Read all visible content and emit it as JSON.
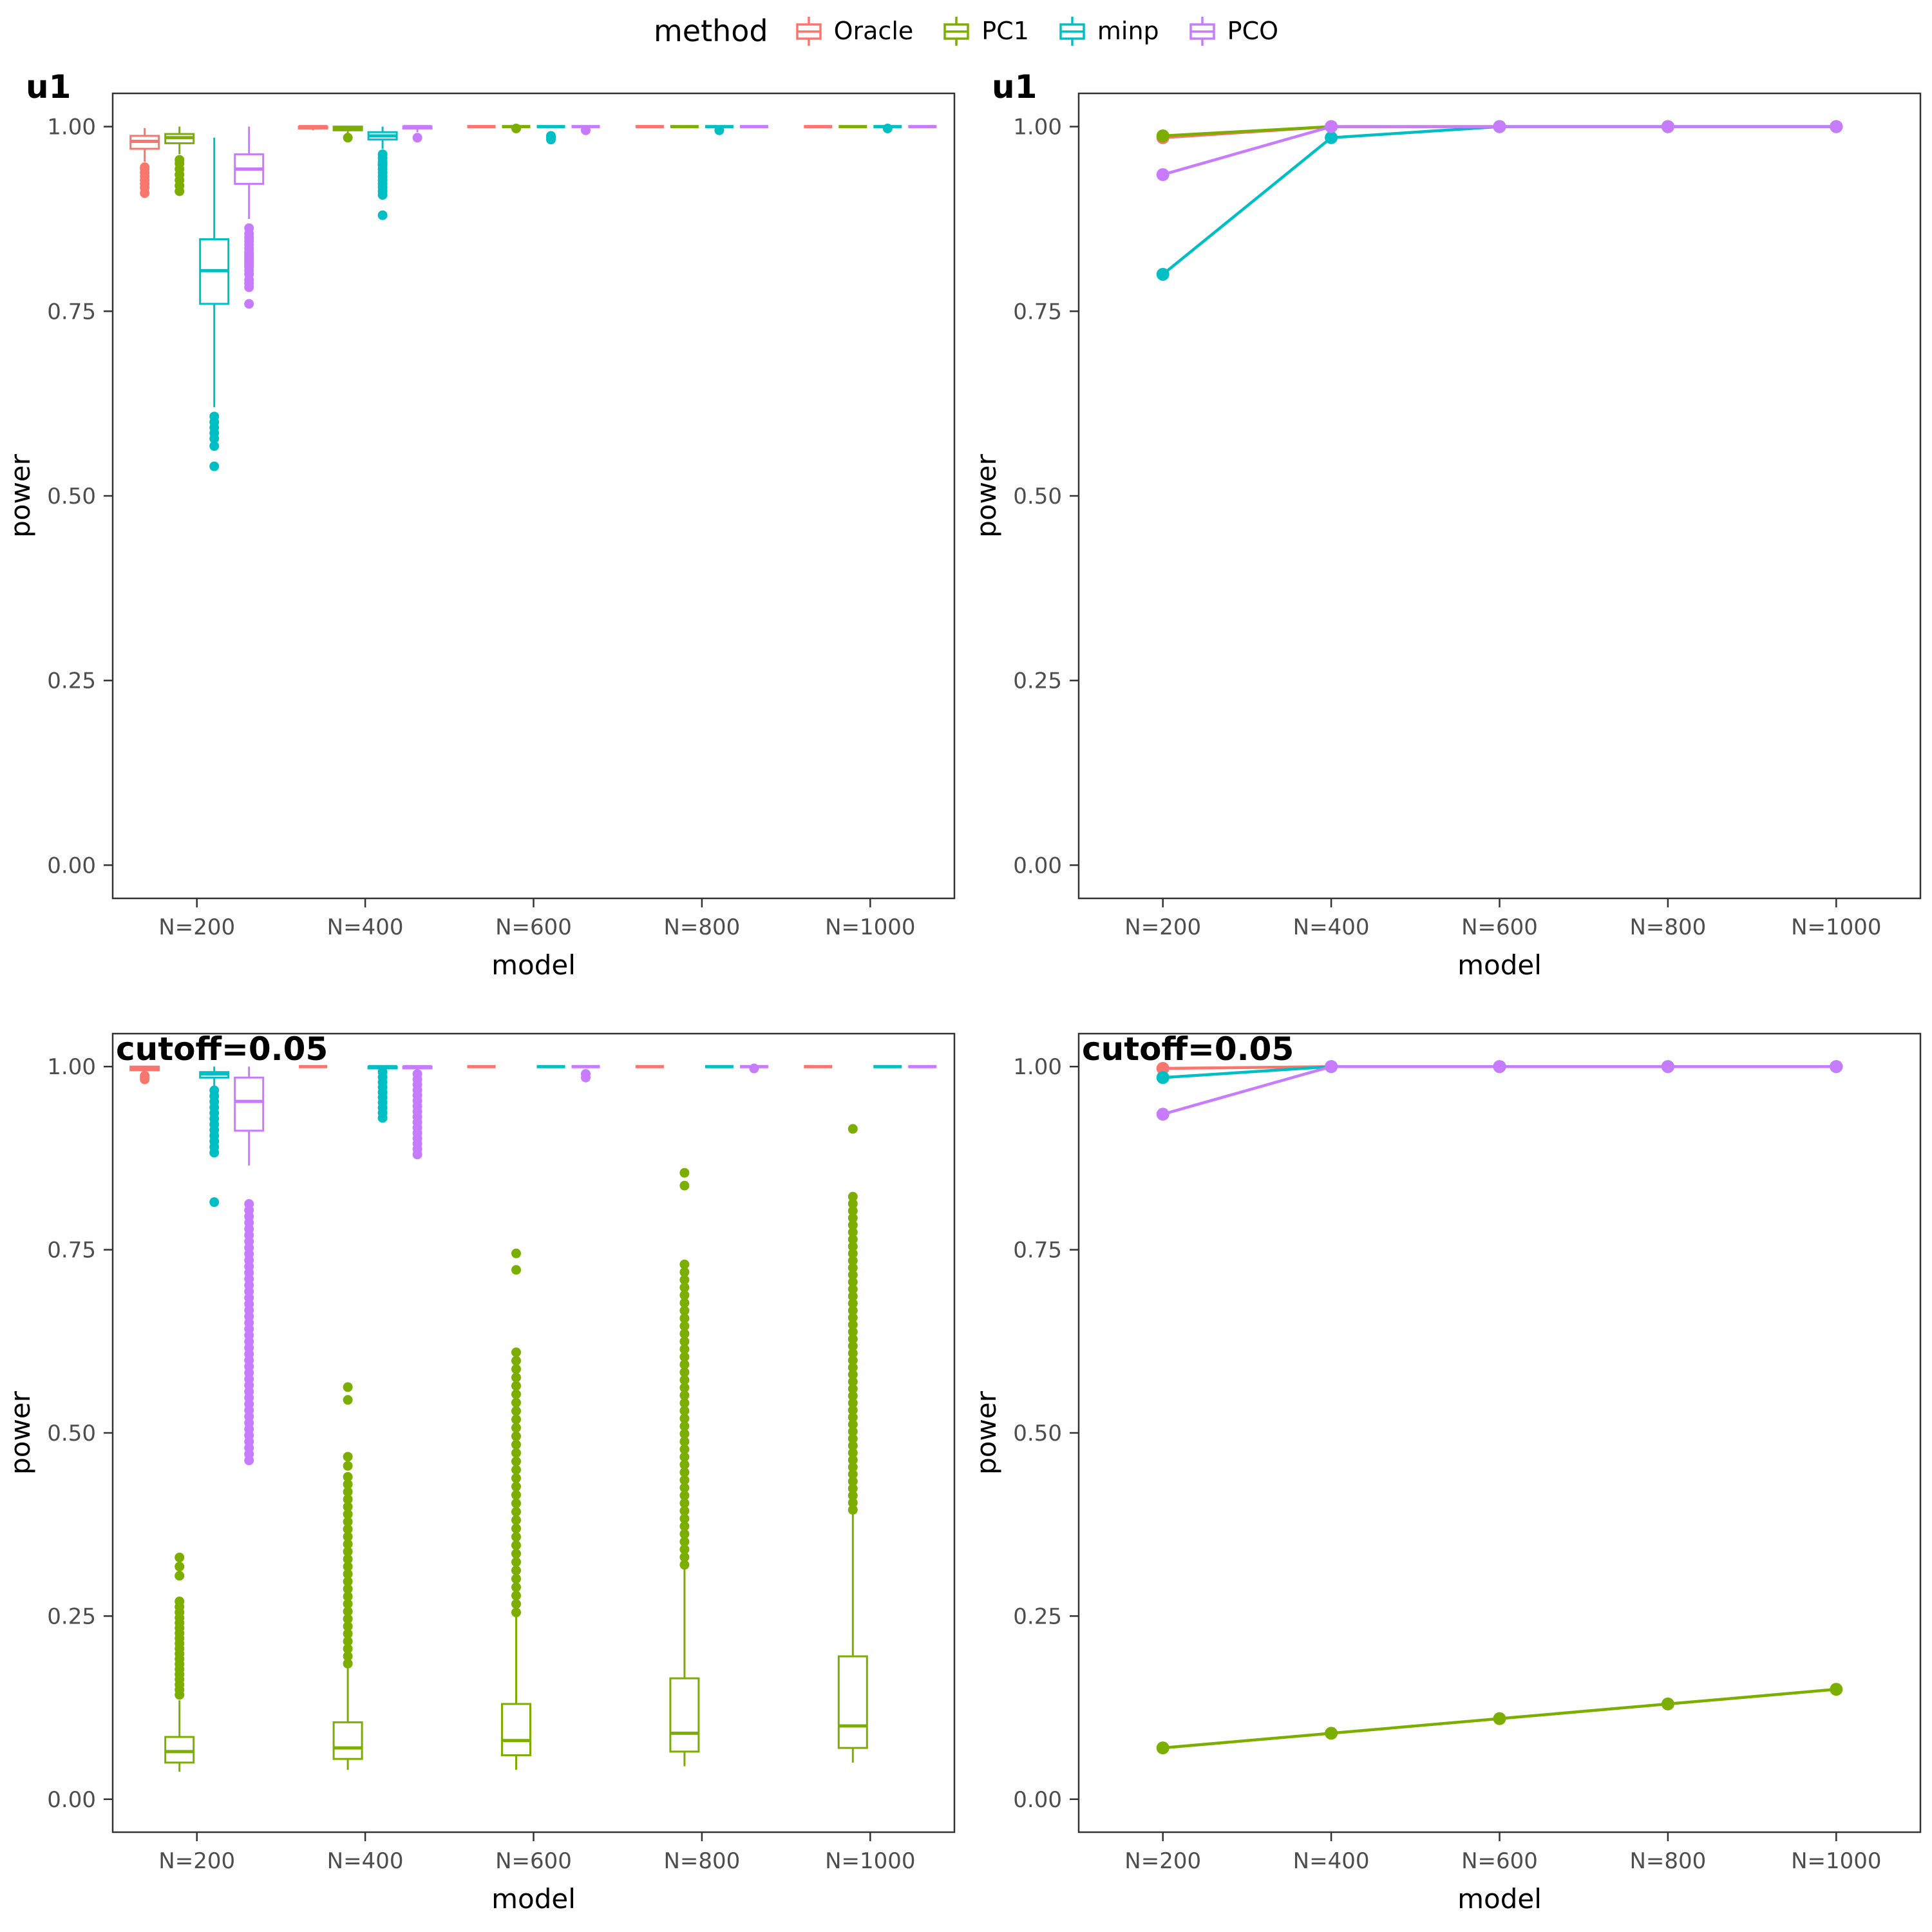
{
  "legend": {
    "title": "method",
    "items": [
      {
        "label": "Oracle",
        "color": "#F8766D"
      },
      {
        "label": "PC1",
        "color": "#7CAE00"
      },
      {
        "label": "minp",
        "color": "#00BFC4"
      },
      {
        "label": "PCO",
        "color": "#C77CFF"
      }
    ]
  },
  "chart_data": [
    {
      "type": "boxplot",
      "tag": "u1",
      "xlabel": "model",
      "ylabel": "power",
      "categories": [
        "N=200",
        "N=400",
        "N=600",
        "N=800",
        "N=1000"
      ],
      "yticks": [
        0,
        0.25,
        0.5,
        0.75,
        1
      ],
      "ytick_labels": [
        "0.00",
        "0.25",
        "0.50",
        "0.75",
        "1.00"
      ],
      "ylim": [
        0,
        1
      ],
      "legend_position": "top",
      "grid": false,
      "series": [
        {
          "name": "Oracle",
          "color": "#F8766D",
          "boxes": [
            {
              "lo": 0.9525,
              "q1": 0.97,
              "med": 0.98,
              "q3": 0.9875,
              "hi": 0.998,
              "out": [
                0.945,
                0.9425,
                0.9375,
                0.9325,
                0.9275,
                0.9225,
                0.9175,
                0.91
              ]
            },
            {
              "lo": 0.995,
              "q1": 0.9975,
              "med": 1,
              "q3": 1,
              "hi": 1
            },
            {
              "lo": 1,
              "q1": 1,
              "med": 1,
              "q3": 1,
              "hi": 1
            },
            {
              "lo": 1,
              "q1": 1,
              "med": 1,
              "q3": 1,
              "hi": 1
            },
            {
              "lo": 1,
              "q1": 1,
              "med": 1,
              "q3": 1,
              "hi": 1
            }
          ]
        },
        {
          "name": "PC1",
          "color": "#7CAE00",
          "boxes": [
            {
              "lo": 0.9625,
              "q1": 0.9775,
              "med": 0.985,
              "q3": 0.99,
              "hi": 1,
              "out": [
                0.955,
                0.95,
                0.9425,
                0.935,
                0.9275,
                0.92,
                0.9125
              ]
            },
            {
              "lo": 0.99,
              "q1": 0.995,
              "med": 0.9975,
              "q3": 1,
              "hi": 1,
              "out": [
                0.985
              ]
            },
            {
              "lo": 1,
              "q1": 1,
              "med": 1,
              "q3": 1,
              "hi": 1,
              "out": [
                0.9975
              ]
            },
            {
              "lo": 1,
              "q1": 1,
              "med": 1,
              "q3": 1,
              "hi": 1
            },
            {
              "lo": 1,
              "q1": 1,
              "med": 1,
              "q3": 1,
              "hi": 1
            }
          ]
        },
        {
          "name": "minp",
          "color": "#00BFC4",
          "boxes": [
            {
              "lo": 0.62,
              "q1": 0.76,
              "med": 0.805,
              "q3": 0.8475,
              "hi": 0.985,
              "out": [
                0.6075,
                0.6,
                0.5925,
                0.585,
                0.5775,
                0.5675,
                0.54
              ]
            },
            {
              "lo": 0.97,
              "q1": 0.9825,
              "med": 0.9875,
              "q3": 0.9925,
              "hi": 1,
              "out": [
                0.9625,
                0.9575,
                0.9525,
                0.95,
                0.9475,
                0.9425,
                0.9375,
                0.9325,
                0.9275,
                0.9225,
                0.9175,
                0.9125,
                0.9075,
                0.88
              ]
            },
            {
              "lo": 1,
              "q1": 1,
              "med": 1,
              "q3": 1,
              "hi": 1,
              "out": [
                0.9875,
                0.985,
                0.9825
              ]
            },
            {
              "lo": 1,
              "q1": 1,
              "med": 1,
              "q3": 1,
              "hi": 1,
              "out": [
                0.995
              ]
            },
            {
              "lo": 1,
              "q1": 1,
              "med": 1,
              "q3": 1,
              "hi": 1,
              "out": [
                0.9975
              ]
            }
          ]
        },
        {
          "name": "PCO",
          "color": "#C77CFF",
          "boxes": [
            {
              "lo": 0.875,
              "q1": 0.9225,
              "med": 0.9425,
              "q3": 0.9625,
              "hi": 1,
              "out": [
                0.8625,
                0.855,
                0.85,
                0.845,
                0.84,
                0.835,
                0.83,
                0.8275,
                0.825,
                0.8225,
                0.82,
                0.8175,
                0.815,
                0.8125,
                0.81,
                0.805,
                0.8,
                0.7925,
                0.7875,
                0.7825,
                0.76
              ]
            },
            {
              "lo": 0.9925,
              "q1": 0.9975,
              "med": 1,
              "q3": 1,
              "hi": 1,
              "out": [
                0.985
              ]
            },
            {
              "lo": 1,
              "q1": 1,
              "med": 1,
              "q3": 1,
              "hi": 1,
              "out": [
                0.995
              ]
            },
            {
              "lo": 1,
              "q1": 1,
              "med": 1,
              "q3": 1,
              "hi": 1
            },
            {
              "lo": 1,
              "q1": 1,
              "med": 1,
              "q3": 1,
              "hi": 1
            }
          ]
        }
      ]
    },
    {
      "type": "line",
      "tag": "u1",
      "xlabel": "model",
      "ylabel": "power",
      "categories": [
        "N=200",
        "N=400",
        "N=600",
        "N=800",
        "N=1000"
      ],
      "yticks": [
        0,
        0.25,
        0.5,
        0.75,
        1
      ],
      "ytick_labels": [
        "0.00",
        "0.25",
        "0.50",
        "0.75",
        "1.00"
      ],
      "ylim": [
        0,
        1
      ],
      "grid": false,
      "series": [
        {
          "name": "Oracle",
          "color": "#F8766D",
          "values": [
            0.985,
            1,
            1,
            1,
            1
          ]
        },
        {
          "name": "PC1",
          "color": "#7CAE00",
          "values": [
            0.9875,
            1,
            1,
            1,
            1
          ]
        },
        {
          "name": "minp",
          "color": "#00BFC4",
          "values": [
            0.8,
            0.985,
            1,
            1,
            1
          ]
        },
        {
          "name": "PCO",
          "color": "#C77CFF",
          "values": [
            0.935,
            1,
            1,
            1,
            1
          ]
        }
      ]
    },
    {
      "type": "boxplot",
      "tag": "cutoff=0.05",
      "xlabel": "model",
      "ylabel": "power",
      "categories": [
        "N=200",
        "N=400",
        "N=600",
        "N=800",
        "N=1000"
      ],
      "yticks": [
        0,
        0.25,
        0.5,
        0.75,
        1
      ],
      "ytick_labels": [
        "0.00",
        "0.25",
        "0.50",
        "0.75",
        "1.00"
      ],
      "ylim": [
        0,
        1
      ],
      "grid": false,
      "series": [
        {
          "name": "Oracle",
          "color": "#F8766D",
          "boxes": [
            {
              "lo": 0.99,
              "q1": 0.995,
              "med": 0.9975,
              "q3": 1,
              "hi": 1,
              "out": [
                0.9875,
                0.985,
                0.9825
              ]
            },
            {
              "lo": 1,
              "q1": 1,
              "med": 1,
              "q3": 1,
              "hi": 1
            },
            {
              "lo": 1,
              "q1": 1,
              "med": 1,
              "q3": 1,
              "hi": 1
            },
            {
              "lo": 1,
              "q1": 1,
              "med": 1,
              "q3": 1,
              "hi": 1
            },
            {
              "lo": 1,
              "q1": 1,
              "med": 1,
              "q3": 1,
              "hi": 1
            }
          ]
        },
        {
          "name": "PC1",
          "color": "#7CAE00",
          "boxes": [
            {
              "lo": 0.0375,
              "q1": 0.05,
              "med": 0.065,
              "q3": 0.085,
              "hi": 0.135,
              "band": {
                "from": 0.1425,
                "to": 0.2475,
                "n": 16
              },
              "out": [
                0.255,
                0.2625,
                0.27,
                0.305,
                0.3175,
                0.33
              ]
            },
            {
              "lo": 0.04,
              "q1": 0.055,
              "med": 0.07,
              "q3": 0.105,
              "hi": 0.18,
              "band": {
                "from": 0.185,
                "to": 0.44,
                "n": 26
              },
              "out": [
                0.455,
                0.4675,
                0.545,
                0.5625
              ]
            },
            {
              "lo": 0.04,
              "q1": 0.06,
              "med": 0.08,
              "q3": 0.13,
              "hi": 0.25,
              "band": {
                "from": 0.255,
                "to": 0.61,
                "n": 32
              },
              "out": [
                0.7225,
                0.745
              ]
            },
            {
              "lo": 0.045,
              "q1": 0.065,
              "med": 0.09,
              "q3": 0.165,
              "hi": 0.315,
              "band": {
                "from": 0.32,
                "to": 0.73,
                "n": 40
              },
              "out": [
                0.8375,
                0.855
              ]
            },
            {
              "lo": 0.05,
              "q1": 0.07,
              "med": 0.1,
              "q3": 0.195,
              "hi": 0.39,
              "band": {
                "from": 0.395,
                "to": 0.8225,
                "n": 45
              },
              "out": [
                0.915
              ]
            }
          ]
        },
        {
          "name": "minp",
          "color": "#00BFC4",
          "boxes": [
            {
              "lo": 0.9725,
              "q1": 0.985,
              "med": 0.99,
              "q3": 0.9925,
              "hi": 1,
              "band": {
                "from": 0.8825,
                "to": 0.9675,
                "n": 12
              },
              "out": [
                0.815
              ]
            },
            {
              "lo": 0.995,
              "q1": 0.9975,
              "med": 1,
              "q3": 1,
              "hi": 1,
              "band": {
                "from": 0.93,
                "to": 0.9925,
                "n": 10
              }
            },
            {
              "lo": 1,
              "q1": 1,
              "med": 1,
              "q3": 1,
              "hi": 1
            },
            {
              "lo": 1,
              "q1": 1,
              "med": 1,
              "q3": 1,
              "hi": 1
            },
            {
              "lo": 1,
              "q1": 1,
              "med": 1,
              "q3": 1,
              "hi": 1
            }
          ]
        },
        {
          "name": "PCO",
          "color": "#C77CFF",
          "boxes": [
            {
              "lo": 0.865,
              "q1": 0.9125,
              "med": 0.9525,
              "q3": 0.985,
              "hi": 1,
              "band": {
                "from": 0.4625,
                "to": 0.8125,
                "n": 42
              }
            },
            {
              "lo": 0.9925,
              "q1": 0.9975,
              "med": 1,
              "q3": 1,
              "hi": 1,
              "band": {
                "from": 0.88,
                "to": 0.99,
                "n": 16
              }
            },
            {
              "lo": 1,
              "q1": 1,
              "med": 1,
              "q3": 1,
              "hi": 1,
              "out": [
                0.99,
                0.985
              ]
            },
            {
              "lo": 1,
              "q1": 1,
              "med": 1,
              "q3": 1,
              "hi": 1,
              "out": [
                0.9975
              ]
            },
            {
              "lo": 1,
              "q1": 1,
              "med": 1,
              "q3": 1,
              "hi": 1
            }
          ]
        }
      ]
    },
    {
      "type": "line",
      "tag": "cutoff=0.05",
      "xlabel": "model",
      "ylabel": "power",
      "categories": [
        "N=200",
        "N=400",
        "N=600",
        "N=800",
        "N=1000"
      ],
      "yticks": [
        0,
        0.25,
        0.5,
        0.75,
        1
      ],
      "ytick_labels": [
        "0.00",
        "0.25",
        "0.50",
        "0.75",
        "1.00"
      ],
      "ylim": [
        0,
        1
      ],
      "grid": false,
      "series": [
        {
          "name": "Oracle",
          "color": "#F8766D",
          "values": [
            0.9975,
            1,
            1,
            1,
            1
          ]
        },
        {
          "name": "PC1",
          "color": "#7CAE00",
          "values": [
            0.07,
            0.09,
            0.11,
            0.13,
            0.15
          ]
        },
        {
          "name": "minp",
          "color": "#00BFC4",
          "values": [
            0.985,
            1,
            1,
            1,
            1
          ]
        },
        {
          "name": "PCO",
          "color": "#C77CFF",
          "values": [
            0.935,
            1,
            1,
            1,
            1
          ]
        }
      ]
    }
  ]
}
